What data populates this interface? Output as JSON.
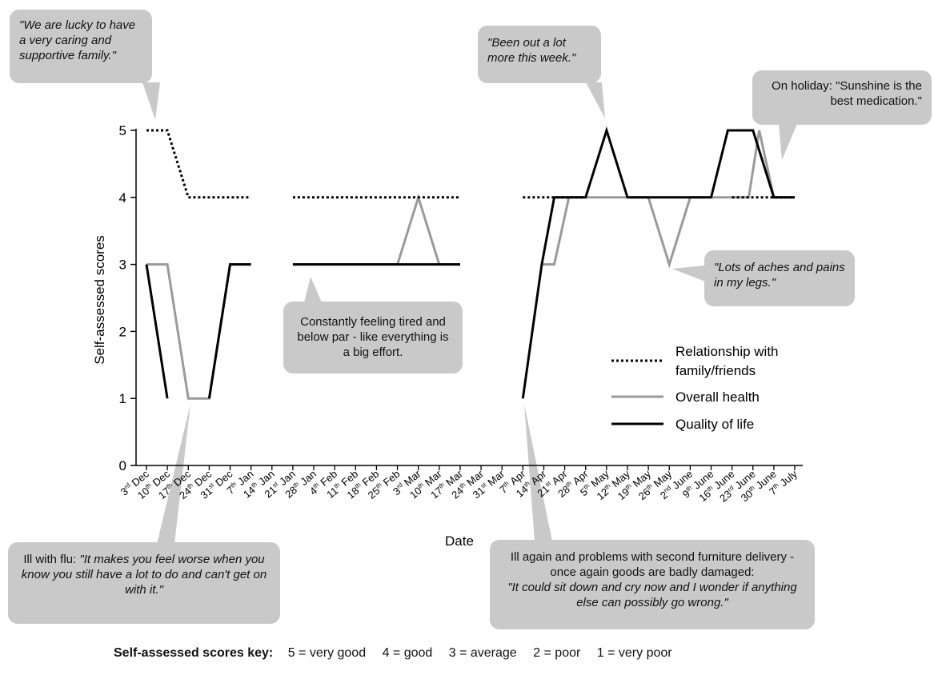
{
  "chart_data": {
    "type": "line",
    "xlabel": "Date",
    "ylabel": "Self-assessed scores",
    "ylim": [
      0,
      5
    ],
    "yticks": [
      0,
      1,
      2,
      3,
      4,
      5
    ],
    "x_ticks": [
      {
        "day": "3",
        "sup": "rd",
        "month": "Dec"
      },
      {
        "day": "10",
        "sup": "th",
        "month": "Dec"
      },
      {
        "day": "17",
        "sup": "th",
        "month": "Dec"
      },
      {
        "day": "24",
        "sup": "th",
        "month": "Dec"
      },
      {
        "day": "31",
        "sup": "st",
        "month": "Dec"
      },
      {
        "day": "7",
        "sup": "th",
        "month": "Jan"
      },
      {
        "day": "14",
        "sup": "th",
        "month": "Jan"
      },
      {
        "day": "21",
        "sup": "st",
        "month": "Jan"
      },
      {
        "day": "28",
        "sup": "th",
        "month": "Jan"
      },
      {
        "day": "4",
        "sup": "th",
        "month": "Feb"
      },
      {
        "day": "11",
        "sup": "th",
        "month": "Feb"
      },
      {
        "day": "18",
        "sup": "th",
        "month": "Feb"
      },
      {
        "day": "25",
        "sup": "th",
        "month": "Feb"
      },
      {
        "day": "3",
        "sup": "rd",
        "month": "Mar"
      },
      {
        "day": "10",
        "sup": "th",
        "month": "Mar"
      },
      {
        "day": "17",
        "sup": "th",
        "month": "Mar"
      },
      {
        "day": "24",
        "sup": "th",
        "month": "Mar"
      },
      {
        "day": "31",
        "sup": "st",
        "month": "Mar"
      },
      {
        "day": "7",
        "sup": "th",
        "month": "Apr"
      },
      {
        "day": "14",
        "sup": "th",
        "month": "Apr"
      },
      {
        "day": "21",
        "sup": "st",
        "month": "Apr"
      },
      {
        "day": "28",
        "sup": "th",
        "month": "Apr"
      },
      {
        "day": "5",
        "sup": "th",
        "month": "May"
      },
      {
        "day": "12",
        "sup": "th",
        "month": "May"
      },
      {
        "day": "19",
        "sup": "th",
        "month": "May"
      },
      {
        "day": "26",
        "sup": "th",
        "month": "May"
      },
      {
        "day": "2",
        "sup": "nd",
        "month": "June"
      },
      {
        "day": "9",
        "sup": "th",
        "month": "June"
      },
      {
        "day": "16",
        "sup": "th",
        "month": "June"
      },
      {
        "day": "23",
        "sup": "rd",
        "month": "June"
      },
      {
        "day": "30",
        "sup": "th",
        "month": "June"
      },
      {
        "day": "7",
        "sup": "th",
        "month": "July"
      }
    ],
    "series": [
      {
        "name": "Relationship with family/friends",
        "style": "dotted",
        "color": "#000000",
        "segments": [
          [
            [
              0,
              5
            ],
            [
              1,
              5
            ],
            [
              2,
              4
            ],
            [
              5,
              4
            ]
          ],
          [
            [
              7,
              4
            ],
            [
              15,
              4
            ]
          ],
          [
            [
              18,
              4
            ],
            [
              21,
              4
            ]
          ],
          [
            [
              28,
              4
            ],
            [
              31,
              4
            ]
          ]
        ]
      },
      {
        "name": "Overall health",
        "style": "solid",
        "color": "#9a9a9a",
        "segments": [
          [
            [
              0,
              3
            ],
            [
              1,
              3
            ],
            [
              2,
              1
            ],
            [
              3,
              1
            ],
            [
              4,
              3
            ],
            [
              5,
              3
            ]
          ],
          [
            [
              7,
              3
            ],
            [
              12,
              3
            ],
            [
              13,
              4
            ],
            [
              14,
              3
            ],
            [
              15,
              3
            ]
          ],
          [
            [
              18.9,
              3
            ],
            [
              19.5,
              3
            ],
            [
              20.2,
              4
            ],
            [
              21,
              4
            ],
            [
              22,
              4
            ],
            [
              23,
              4
            ],
            [
              24,
              4
            ],
            [
              25,
              3
            ],
            [
              26,
              4
            ],
            [
              27,
              4
            ],
            [
              28,
              4
            ],
            [
              28.8,
              4
            ],
            [
              29.3,
              5
            ],
            [
              30,
              4
            ],
            [
              31,
              4
            ]
          ]
        ]
      },
      {
        "name": "Quality of life",
        "style": "solid",
        "color": "#000000",
        "segments": [
          [
            [
              0,
              3
            ],
            [
              1,
              1
            ]
          ],
          [
            [
              3,
              1
            ],
            [
              4,
              3
            ],
            [
              5,
              3
            ]
          ],
          [
            [
              7,
              3
            ],
            [
              15,
              3
            ]
          ],
          [
            [
              18,
              1
            ],
            [
              18.9,
              3
            ],
            [
              19.5,
              4
            ],
            [
              21,
              4
            ],
            [
              22,
              5
            ],
            [
              23,
              4
            ],
            [
              24,
              4
            ],
            [
              25,
              4
            ],
            [
              26,
              4
            ],
            [
              27,
              4
            ],
            [
              27.8,
              5
            ],
            [
              29,
              5
            ],
            [
              30,
              4
            ],
            [
              31,
              4
            ]
          ]
        ]
      }
    ],
    "legend_position": "right"
  },
  "callouts": {
    "family": "\"We are lucky to have a very caring and supportive family.\"",
    "out_a_lot": "\"Been out a lot more this week.\"",
    "holiday": "On holiday: \"Sunshine is the best medication.\"",
    "tired": "Constantly feeling tired and below par - like everything is a big effort.",
    "aches": "\"Lots of aches and pains in my legs.\"",
    "flu_lead": "Ill with flu: ",
    "flu_quote": "\"It makes you feel worse when you know you still have a lot to do and can't get on with it.\"",
    "furniture_lead": "Ill again and problems with second furniture delivery - once again goods are badly damaged:",
    "furniture_quote": "\"It could sit down and cry now and I wonder if anything else can possibly go wrong.\""
  },
  "key": {
    "label": "Self-assessed scores key:",
    "entries": [
      "5 = very good",
      "4 = good",
      "3 = average",
      "2 = poor",
      "1 = very poor"
    ]
  }
}
